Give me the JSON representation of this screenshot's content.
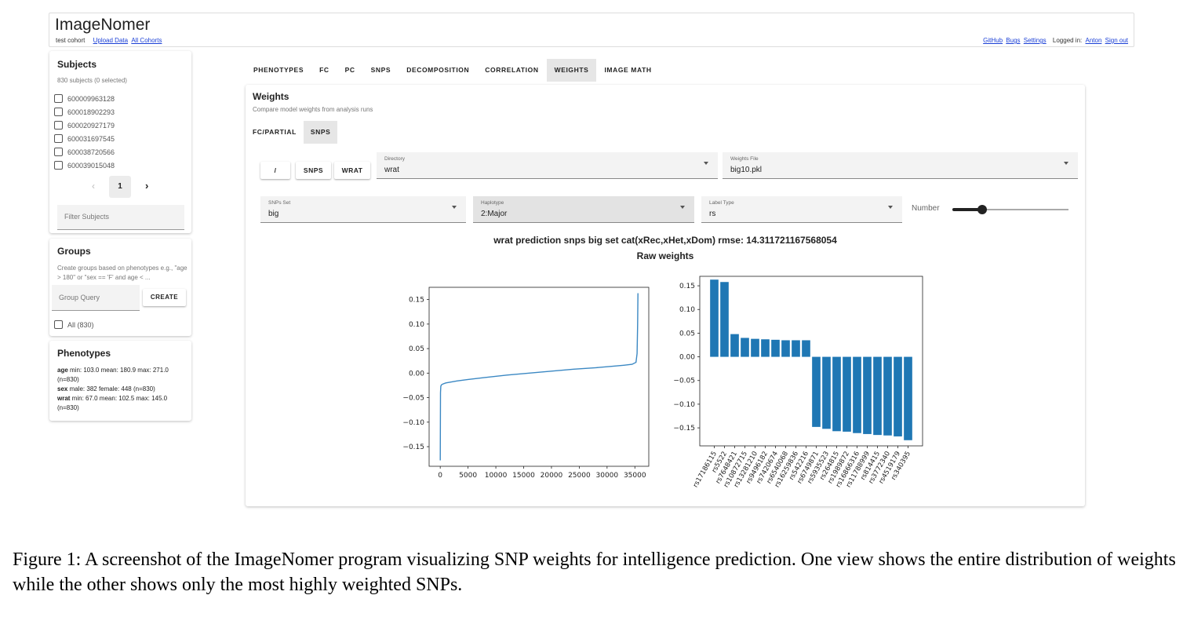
{
  "header": {
    "app_title": "ImageNomer",
    "cohort": "test cohort",
    "upload_link": "Upload Data",
    "cohorts_link": "All Cohorts",
    "github": "GitHub",
    "bugs": "Bugs",
    "settings": "Settings",
    "logged_in_label": "Logged in:",
    "user": "Anton",
    "sign_out": "Sign out"
  },
  "subjects": {
    "title": "Subjects",
    "count": "830 subjects (0 selected)",
    "items": [
      "600009963128",
      "600018902293",
      "600020927179",
      "600031697545",
      "600038720566",
      "600039015048"
    ],
    "prev": "‹",
    "page": "1",
    "next": "›",
    "filter_placeholder": "Filter Subjects"
  },
  "groups": {
    "title": "Groups",
    "hint": "Create groups based on phenotypes e.g., \"age > 180\" or \"sex == 'F' and age < ...",
    "query_placeholder": "Group Query",
    "create": "CREATE",
    "all": "All (830)"
  },
  "phenotypes": {
    "title": "Phenotypes",
    "rows": [
      {
        "name": "age",
        "text": " min: 103.0 mean: 180.9 max: 271.0 (n=830)"
      },
      {
        "name": "sex",
        "text": " male: 382 female: 448 (n=830)"
      },
      {
        "name": "wrat",
        "text": " min: 67.0 mean: 102.5 max: 145.0 (n=830)"
      }
    ]
  },
  "tabs": [
    "PHENOTYPES",
    "FC",
    "PC",
    "SNPS",
    "DECOMPOSITION",
    "CORRELATION",
    "WEIGHTS",
    "IMAGE MATH"
  ],
  "active_tab": "WEIGHTS",
  "weights": {
    "title": "Weights",
    "desc": "Compare model weights from analysis runs",
    "subtabs": [
      "FC/PARTIAL",
      "SNPS"
    ],
    "active_subtab": "SNPS",
    "path_buttons": [
      "/",
      "SNPS",
      "WRAT"
    ],
    "directory": {
      "label": "Directory",
      "value": "wrat"
    },
    "weights_file": {
      "label": "Weights File",
      "value": "big10.pkl"
    },
    "snps_set": {
      "label": "SNPs Set",
      "value": "big"
    },
    "haplotype": {
      "label": "Haplotype",
      "value": "2:Major"
    },
    "label_type": {
      "label": "Label Type",
      "value": "rs"
    },
    "number_label": "Number",
    "number_value_fraction": 0.26,
    "plot_title": "wrat prediction snps big set cat(xRec,xHet,xDom) rmse: 14.311721167568054",
    "plot_subtitle": "Raw weights"
  },
  "chart_data": [
    {
      "type": "line",
      "title": "",
      "xlabel": "",
      "ylabel": "",
      "xlim": [
        -2000,
        37500
      ],
      "ylim": [
        -0.19,
        0.175
      ],
      "xticks": [
        0,
        5000,
        10000,
        15000,
        20000,
        25000,
        30000,
        35000
      ],
      "yticks": [
        -0.15,
        -0.1,
        -0.05,
        0.0,
        0.05,
        0.1,
        0.15
      ],
      "x": [
        0,
        40,
        100,
        200,
        500,
        1000,
        2000,
        3000,
        5000,
        8000,
        12000,
        16000,
        20000,
        24000,
        28000,
        31000,
        33000,
        34500,
        35200,
        35400,
        35500,
        35550
      ],
      "values": [
        -0.178,
        -0.04,
        -0.027,
        -0.024,
        -0.022,
        -0.02,
        -0.018,
        -0.016,
        -0.013,
        -0.009,
        -0.004,
        0.0,
        0.004,
        0.008,
        0.011,
        0.014,
        0.016,
        0.018,
        0.022,
        0.04,
        0.1,
        0.163
      ],
      "color": "#3b88c3"
    },
    {
      "type": "bar",
      "title": "",
      "xlabel": "",
      "ylabel": "",
      "ylim": [
        -0.188,
        0.17
      ],
      "yticks": [
        -0.15,
        -0.1,
        -0.05,
        0.0,
        0.05,
        0.1,
        0.15
      ],
      "categories": [
        "rs17186115",
        "rs5522",
        "rs7648421",
        "rs10872715",
        "rs13281210",
        "rs9496182",
        "rs7420674",
        "rs6540068",
        "rs16259836",
        "rs542216",
        "rs6749871",
        "rs5935523",
        "rs264815",
        "rs1989872",
        "rs16866316",
        "rs11788999",
        "rs814415",
        "rs3772340",
        "rs4519179",
        "rs340395"
      ],
      "values": [
        0.163,
        0.158,
        0.048,
        0.04,
        0.038,
        0.037,
        0.036,
        0.035,
        0.035,
        0.035,
        -0.148,
        -0.152,
        -0.157,
        -0.158,
        -0.161,
        -0.163,
        -0.165,
        -0.166,
        -0.168,
        -0.176
      ],
      "color": "#1f77b4"
    }
  ],
  "caption": "Figure 1: A screenshot of the ImageNomer program visualizing SNP weights for intelligence prediction. One view shows the entire distribution of weights while the other shows only the most highly weighted SNPs."
}
